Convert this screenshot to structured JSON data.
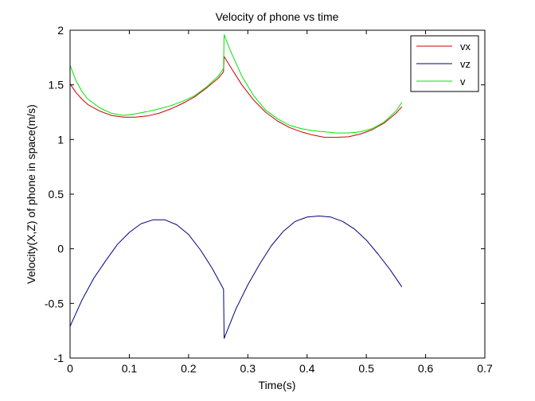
{
  "chart_data": {
    "type": "line",
    "title": "Velocity of phone vs time",
    "xlabel": "Time(s)",
    "ylabel": "Velocity(X,Z) of phone in space(m/s)",
    "xlim": [
      0,
      0.7
    ],
    "ylim": [
      -1,
      2
    ],
    "xticks": [
      "0",
      "0.1",
      "0.2",
      "0.3",
      "0.4",
      "0.5",
      "0.6",
      "0.7"
    ],
    "yticks": [
      "-1",
      "-0.5",
      "0",
      "0.5",
      "1",
      "1.5",
      "2"
    ],
    "grid": false,
    "legend_position": "top-right",
    "series": [
      {
        "name": "vx",
        "color": "#cc0000",
        "x": [
          0,
          0.01,
          0.02,
          0.03,
          0.05,
          0.07,
          0.09,
          0.11,
          0.13,
          0.15,
          0.17,
          0.19,
          0.21,
          0.23,
          0.25,
          0.259,
          0.26,
          0.27,
          0.29,
          0.31,
          0.33,
          0.35,
          0.37,
          0.39,
          0.41,
          0.43,
          0.45,
          0.47,
          0.49,
          0.51,
          0.53,
          0.55,
          0.56
        ],
        "y": [
          1.51,
          1.43,
          1.37,
          1.32,
          1.26,
          1.22,
          1.205,
          1.205,
          1.215,
          1.24,
          1.28,
          1.33,
          1.39,
          1.47,
          1.56,
          1.62,
          1.76,
          1.67,
          1.5,
          1.36,
          1.25,
          1.17,
          1.11,
          1.07,
          1.04,
          1.02,
          1.02,
          1.025,
          1.05,
          1.09,
          1.15,
          1.24,
          1.3
        ]
      },
      {
        "name": "vz",
        "color": "#000080",
        "x": [
          0,
          0.02,
          0.04,
          0.06,
          0.08,
          0.1,
          0.12,
          0.14,
          0.16,
          0.18,
          0.2,
          0.22,
          0.24,
          0.259,
          0.26,
          0.28,
          0.3,
          0.32,
          0.34,
          0.36,
          0.38,
          0.4,
          0.42,
          0.44,
          0.46,
          0.48,
          0.5,
          0.52,
          0.54,
          0.56
        ],
        "y": [
          -0.71,
          -0.47,
          -0.27,
          -0.11,
          0.04,
          0.15,
          0.23,
          0.265,
          0.265,
          0.22,
          0.13,
          -0.01,
          -0.18,
          -0.37,
          -0.82,
          -0.55,
          -0.33,
          -0.14,
          0.03,
          0.16,
          0.25,
          0.29,
          0.3,
          0.29,
          0.25,
          0.18,
          0.08,
          -0.05,
          -0.19,
          -0.35
        ]
      },
      {
        "name": "v",
        "color": "#00e600",
        "x": [
          0,
          0.01,
          0.02,
          0.03,
          0.05,
          0.07,
          0.09,
          0.11,
          0.13,
          0.15,
          0.17,
          0.19,
          0.21,
          0.23,
          0.25,
          0.259,
          0.26,
          0.27,
          0.29,
          0.31,
          0.33,
          0.35,
          0.37,
          0.39,
          0.41,
          0.43,
          0.45,
          0.47,
          0.49,
          0.51,
          0.53,
          0.55,
          0.56
        ],
        "y": [
          1.68,
          1.54,
          1.44,
          1.37,
          1.29,
          1.24,
          1.22,
          1.235,
          1.255,
          1.28,
          1.31,
          1.35,
          1.4,
          1.48,
          1.58,
          1.65,
          1.96,
          1.82,
          1.58,
          1.4,
          1.27,
          1.19,
          1.13,
          1.1,
          1.08,
          1.07,
          1.06,
          1.06,
          1.07,
          1.1,
          1.16,
          1.26,
          1.34
        ]
      }
    ]
  }
}
